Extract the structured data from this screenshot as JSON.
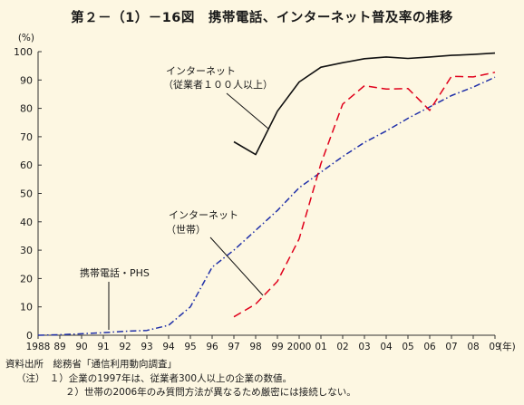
{
  "title": "第２－（1）－16図　携帯電話、インターネット普及率の推移",
  "chart_data": {
    "type": "line",
    "ylabel": "(%)",
    "xunit": "(年)",
    "ylim": [
      0,
      100
    ],
    "yticks": [
      0,
      10,
      20,
      30,
      40,
      50,
      60,
      70,
      80,
      90,
      100
    ],
    "xlim": [
      1988,
      2009
    ],
    "xticks": [
      {
        "year": 1988,
        "label": "1988"
      },
      {
        "year": 1989,
        "label": "89"
      },
      {
        "year": 1990,
        "label": "90"
      },
      {
        "year": 1991,
        "label": "91"
      },
      {
        "year": 1992,
        "label": "92"
      },
      {
        "year": 1993,
        "label": "93"
      },
      {
        "year": 1994,
        "label": "94"
      },
      {
        "year": 1995,
        "label": "95"
      },
      {
        "year": 1996,
        "label": "96"
      },
      {
        "year": 1997,
        "label": "97"
      },
      {
        "year": 1998,
        "label": "98"
      },
      {
        "year": 1999,
        "label": "99"
      },
      {
        "year": 2000,
        "label": "2000"
      },
      {
        "year": 2001,
        "label": "01"
      },
      {
        "year": 2002,
        "label": "02"
      },
      {
        "year": 2003,
        "label": "03"
      },
      {
        "year": 2004,
        "label": "04"
      },
      {
        "year": 2005,
        "label": "05"
      },
      {
        "year": 2006,
        "label": "06"
      },
      {
        "year": 2007,
        "label": "07"
      },
      {
        "year": 2008,
        "label": "08"
      },
      {
        "year": 2009,
        "label": "09"
      }
    ],
    "series": [
      {
        "name": "携帯電話・PHS",
        "style": "dashdot",
        "color": "#1f2fa8",
        "x": [
          1988,
          1989,
          1990,
          1991,
          1992,
          1993,
          1994,
          1995,
          1996,
          1997,
          1998,
          1999,
          2000,
          2001,
          2002,
          2003,
          2004,
          2005,
          2006,
          2007,
          2008,
          2009
        ],
        "y": [
          0.0,
          0.2,
          0.5,
          0.9,
          1.4,
          1.7,
          3.5,
          10.0,
          24.0,
          30.0,
          37.0,
          44.0,
          52.0,
          57.5,
          63.0,
          68.0,
          72.0,
          76.5,
          80.5,
          84.5,
          87.5,
          91.0
        ]
      },
      {
        "name": "インターネット（世帯）",
        "style": "dashed",
        "color": "#e0001b",
        "x": [
          1997,
          1998,
          1999,
          2000,
          2001,
          2002,
          2003,
          2004,
          2005,
          2006,
          2007,
          2008,
          2009
        ],
        "y": [
          6.5,
          11.0,
          19.0,
          34.0,
          60.5,
          81.5,
          88.0,
          86.8,
          87.0,
          79.3,
          91.3,
          91.1,
          92.7
        ]
      },
      {
        "name": "インターネット（従業者100人以上）",
        "style": "solid",
        "color": "#111111",
        "x": [
          1997,
          1998,
          1999,
          2000,
          2001,
          2002,
          2003,
          2004,
          2005,
          2006,
          2007,
          2008,
          2009
        ],
        "y": [
          68.2,
          63.7,
          79.0,
          89.3,
          94.5,
          96.1,
          97.5,
          98.1,
          97.6,
          98.1,
          98.7,
          99.0,
          99.5
        ]
      }
    ],
    "annotations": [
      {
        "id": "internet-company",
        "lines": [
          "インターネット",
          "（従業者１００人以上）"
        ]
      },
      {
        "id": "internet-household",
        "lines": [
          "インターネット",
          "（世帯）"
        ]
      },
      {
        "id": "mobile",
        "lines": [
          "携帯電話・PHS"
        ]
      }
    ]
  },
  "notes": {
    "source": "資料出所　総務省「通信利用動向調査」",
    "note1": "（注）　１）企業の1997年は、従業者300人以上の企業の数値。",
    "note2": "２）世帯の2006年のみ質問方法が異なるため厳密には接続しない。"
  }
}
